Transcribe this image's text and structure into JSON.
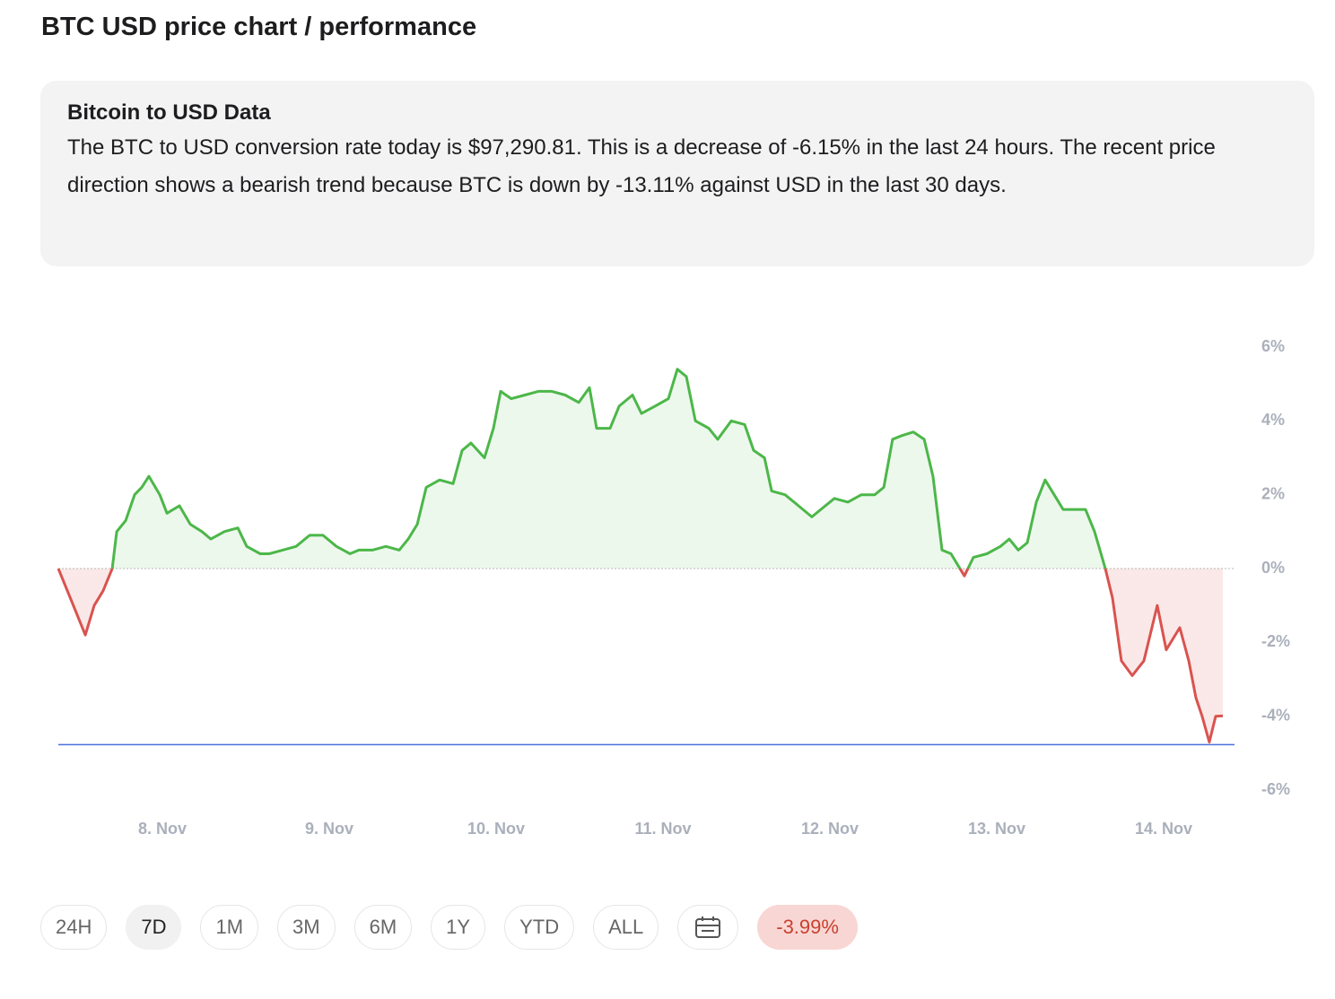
{
  "header": {
    "title": "BTC USD price chart / performance"
  },
  "info": {
    "title": "Bitcoin to USD Data",
    "text": "The BTC to USD conversion rate today is $97,290.81. This is a decrease of -6.15% in the last 24 hours. The recent price direction shows a bearish trend because BTC is down by -13.11% against USD in the last 30 days."
  },
  "chart_data": {
    "type": "line",
    "x": [
      7.376,
      7.457,
      7.538,
      7.591,
      7.645,
      7.699,
      7.726,
      7.78,
      7.833,
      7.876,
      7.919,
      7.984,
      8.027,
      8.102,
      8.167,
      8.237,
      8.29,
      8.371,
      8.452,
      8.505,
      8.586,
      8.64,
      8.72,
      8.801,
      8.882,
      8.962,
      9.043,
      9.124,
      9.177,
      9.258,
      9.339,
      9.419,
      9.473,
      9.527,
      9.581,
      9.661,
      9.742,
      9.796,
      9.849,
      9.93,
      9.984,
      10.027,
      10.091,
      10.172,
      10.253,
      10.333,
      10.414,
      10.495,
      10.559,
      10.602,
      10.683,
      10.737,
      10.817,
      10.871,
      10.952,
      11.032,
      11.086,
      11.14,
      11.194,
      11.274,
      11.328,
      11.409,
      11.489,
      11.543,
      11.608,
      11.651,
      11.731,
      11.812,
      11.892,
      11.946,
      12.027,
      12.108,
      12.188,
      12.269,
      12.323,
      12.376,
      12.43,
      12.5,
      12.565,
      12.618,
      12.672,
      12.726,
      12.806,
      12.86,
      12.941,
      13.022,
      13.075,
      13.129,
      13.183,
      13.237,
      13.29,
      13.344,
      13.398,
      13.478,
      13.532,
      13.586,
      13.651,
      13.694,
      13.747,
      13.812,
      13.882,
      13.962,
      14.016,
      14.097,
      14.151,
      14.194,
      14.231,
      14.274,
      14.312,
      14.355
    ],
    "values": [
      0,
      -0.9,
      -1.8,
      -1.0,
      -0.6,
      0.0,
      1.0,
      1.3,
      2.0,
      2.2,
      2.5,
      2.0,
      1.5,
      1.7,
      1.2,
      1.0,
      0.8,
      1.0,
      1.1,
      0.6,
      0.4,
      0.4,
      0.5,
      0.6,
      0.9,
      0.9,
      0.6,
      0.4,
      0.5,
      0.5,
      0.6,
      0.5,
      0.8,
      1.2,
      2.2,
      2.4,
      2.3,
      3.2,
      3.4,
      3.0,
      3.8,
      4.8,
      4.6,
      4.7,
      4.8,
      4.8,
      4.7,
      4.5,
      4.9,
      3.8,
      3.8,
      4.4,
      4.7,
      4.2,
      4.4,
      4.6,
      5.4,
      5.2,
      4.0,
      3.8,
      3.5,
      4.0,
      3.9,
      3.2,
      3.0,
      2.1,
      2.0,
      1.7,
      1.4,
      1.6,
      1.9,
      1.8,
      2.0,
      2.0,
      2.2,
      3.5,
      3.6,
      3.7,
      3.5,
      2.5,
      0.5,
      0.4,
      -0.2,
      0.3,
      0.4,
      0.6,
      0.8,
      0.5,
      0.7,
      1.8,
      2.4,
      2.0,
      1.6,
      1.6,
      1.6,
      1.0,
      0.0,
      -0.8,
      -2.5,
      -2.9,
      -2.5,
      -1.0,
      -2.2,
      -1.6,
      -2.5,
      -3.5,
      -4.0,
      -4.7,
      -4.0,
      -3.99
    ],
    "up_color": "#4cb749",
    "down_color": "#d9534f",
    "low_line": -4.77,
    "low_line_color": "#4a6fdc",
    "xlim": [
      7.376,
      14.425
    ],
    "xticks": [
      {
        "value": 8,
        "label": "8. Nov"
      },
      {
        "value": 9,
        "label": "9. Nov"
      },
      {
        "value": 10,
        "label": "10. Nov"
      },
      {
        "value": 11,
        "label": "11. Nov"
      },
      {
        "value": 12,
        "label": "12. Nov"
      },
      {
        "value": 13,
        "label": "13. Nov"
      },
      {
        "value": 14,
        "label": "14. Nov"
      }
    ],
    "ylim": [
      -6,
      6
    ],
    "yticks": [
      {
        "value": 6,
        "label": "6%"
      },
      {
        "value": 4,
        "label": "4%"
      },
      {
        "value": 2,
        "label": "2%"
      },
      {
        "value": 0,
        "label": "0%"
      },
      {
        "value": -2,
        "label": "-2%"
      },
      {
        "value": -4,
        "label": "-4%"
      },
      {
        "value": -6,
        "label": "-6%"
      }
    ]
  },
  "controls": {
    "ranges": [
      "24H",
      "7D",
      "1M",
      "3M",
      "6M",
      "1Y",
      "YTD",
      "ALL"
    ],
    "active": "7D",
    "change": "-3.99%"
  }
}
